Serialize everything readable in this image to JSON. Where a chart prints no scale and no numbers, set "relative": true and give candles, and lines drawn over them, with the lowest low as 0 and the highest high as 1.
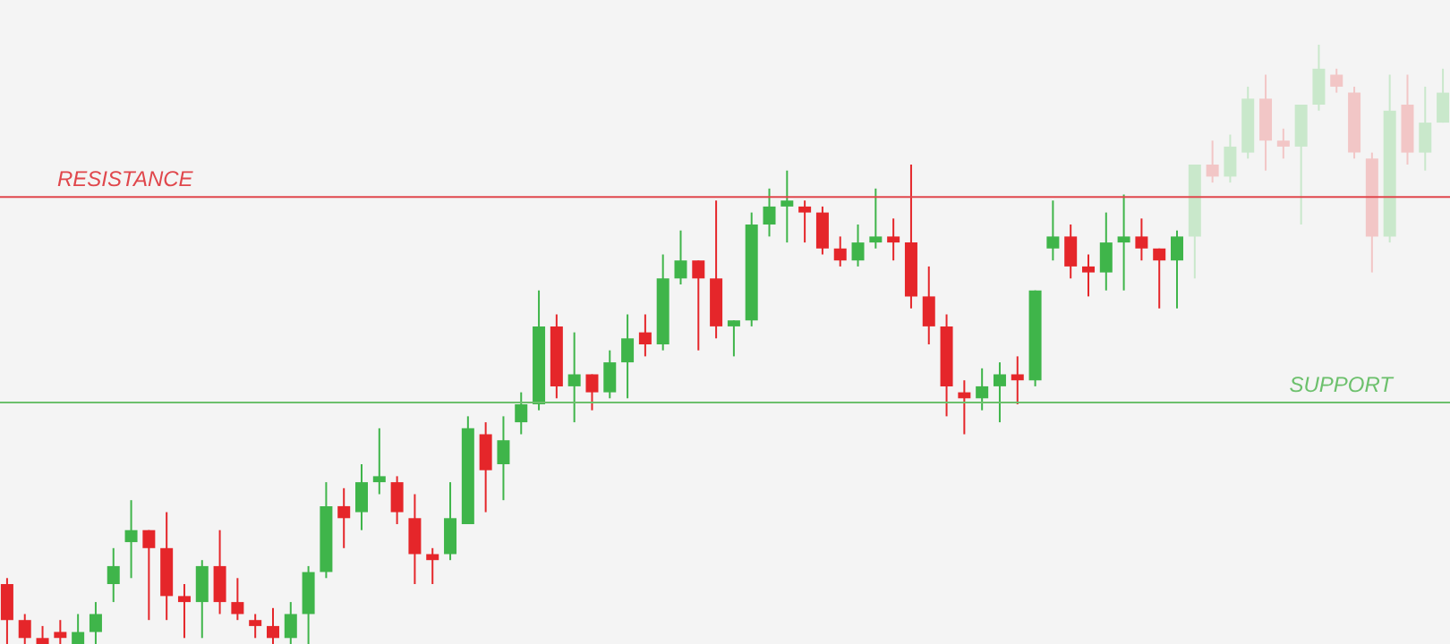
{
  "chart_data": {
    "type": "candlestick",
    "relative": true,
    "categories": [
      null,
      null,
      null,
      null,
      null,
      null,
      null,
      null,
      null,
      null,
      null,
      null,
      null,
      null,
      null,
      null,
      null,
      null,
      null,
      null,
      null,
      null,
      null,
      null,
      null,
      null,
      null,
      null,
      null,
      null,
      null,
      null,
      null,
      null,
      null,
      null,
      null,
      null,
      null,
      null,
      null,
      null,
      null,
      null,
      null,
      null,
      null,
      null,
      null,
      null,
      null,
      null,
      null,
      null,
      null,
      null,
      null,
      null,
      null,
      null,
      null,
      null,
      null,
      null,
      null,
      null,
      null,
      null,
      null,
      null,
      null,
      null,
      null,
      null,
      null,
      null,
      null,
      null,
      null,
      null,
      null,
      null
    ],
    "ohlc": [
      [
        0.1,
        0.11,
        0,
        0.04
      ],
      [
        0.04,
        0.05,
        0,
        0.01
      ],
      [
        0.01,
        0.03,
        0,
        0
      ],
      [
        0.02,
        0.04,
        0,
        0.01
      ],
      [
        0,
        0.05,
        0,
        0.02
      ],
      [
        0.02,
        0.07,
        0,
        0.05
      ],
      [
        0.1,
        0.16,
        0.07,
        0.13
      ],
      [
        0.17,
        0.24,
        0.11,
        0.19
      ],
      [
        0.19,
        0.19,
        0.04,
        0.16
      ],
      [
        0.16,
        0.22,
        0.04,
        0.08
      ],
      [
        0.08,
        0.1,
        0.01,
        0.07
      ],
      [
        0.07,
        0.14,
        0.01,
        0.13
      ],
      [
        0.13,
        0.19,
        0.05,
        0.07
      ],
      [
        0.07,
        0.11,
        0.04,
        0.05
      ],
      [
        0.04,
        0.05,
        0.01,
        0.03
      ],
      [
        0.03,
        0.06,
        0,
        0.01
      ],
      [
        0.01,
        0.07,
        0,
        0.05
      ],
      [
        0.05,
        0.13,
        0,
        0.12
      ],
      [
        0.12,
        0.27,
        0.11,
        0.23
      ],
      [
        0.23,
        0.26,
        0.16,
        0.21
      ],
      [
        0.22,
        0.3,
        0.19,
        0.27
      ],
      [
        0.27,
        0.36,
        0.25,
        0.28
      ],
      [
        0.27,
        0.28,
        0.2,
        0.22
      ],
      [
        0.21,
        0.25,
        0.1,
        0.15
      ],
      [
        0.15,
        0.16,
        0.1,
        0.14
      ],
      [
        0.15,
        0.27,
        0.14,
        0.21
      ],
      [
        0.2,
        0.38,
        0.2,
        0.36
      ],
      [
        0.35,
        0.37,
        0.22,
        0.29
      ],
      [
        0.3,
        0.38,
        0.24,
        0.34
      ],
      [
        0.37,
        0.42,
        0.35,
        0.4
      ],
      [
        0.4,
        0.59,
        0.39,
        0.53
      ],
      [
        0.53,
        0.55,
        0.41,
        0.43
      ],
      [
        0.43,
        0.52,
        0.37,
        0.45
      ],
      [
        0.45,
        0.45,
        0.39,
        0.42
      ],
      [
        0.42,
        0.49,
        0.41,
        0.47
      ],
      [
        0.47,
        0.55,
        0.41,
        0.51
      ],
      [
        0.52,
        0.55,
        0.48,
        0.5
      ],
      [
        0.5,
        0.65,
        0.49,
        0.61
      ],
      [
        0.61,
        0.69,
        0.6,
        0.64
      ],
      [
        0.64,
        0.64,
        0.49,
        0.61
      ],
      [
        0.61,
        0.74,
        0.51,
        0.53
      ],
      [
        0.53,
        0.54,
        0.48,
        0.54
      ],
      [
        0.54,
        0.72,
        0.53,
        0.7
      ],
      [
        0.7,
        0.76,
        0.68,
        0.73
      ],
      [
        0.73,
        0.79,
        0.67,
        0.74
      ],
      [
        0.73,
        0.74,
        0.67,
        0.72
      ],
      [
        0.72,
        0.73,
        0.65,
        0.66
      ],
      [
        0.66,
        0.68,
        0.63,
        0.64
      ],
      [
        0.64,
        0.7,
        0.63,
        0.67
      ],
      [
        0.67,
        0.76,
        0.66,
        0.68
      ],
      [
        0.68,
        0.71,
        0.64,
        0.67
      ],
      [
        0.67,
        0.8,
        0.56,
        0.58
      ],
      [
        0.58,
        0.63,
        0.5,
        0.53
      ],
      [
        0.53,
        0.55,
        0.38,
        0.43
      ],
      [
        0.42,
        0.44,
        0.35,
        0.41
      ],
      [
        0.41,
        0.46,
        0.39,
        0.43
      ],
      [
        0.43,
        0.47,
        0.37,
        0.45
      ],
      [
        0.45,
        0.48,
        0.4,
        0.44
      ],
      [
        0.44,
        0.59,
        0.43,
        0.59
      ],
      [
        0.66,
        0.74,
        0.64,
        0.68
      ],
      [
        0.68,
        0.7,
        0.61,
        0.63
      ],
      [
        0.63,
        0.65,
        0.58,
        0.62
      ],
      [
        0.62,
        0.72,
        0.59,
        0.67
      ],
      [
        0.67,
        0.75,
        0.59,
        0.68
      ],
      [
        0.68,
        0.71,
        0.64,
        0.66
      ],
      [
        0.66,
        0.66,
        0.56,
        0.64
      ],
      [
        0.64,
        0.69,
        0.56,
        0.68
      ],
      [
        0.68,
        0.8,
        0.61,
        0.8
      ],
      [
        0.8,
        0.84,
        0.77,
        0.78
      ],
      [
        0.78,
        0.85,
        0.77,
        0.83
      ],
      [
        0.82,
        0.93,
        0.81,
        0.91
      ],
      [
        0.91,
        0.95,
        0.79,
        0.84
      ],
      [
        0.84,
        0.86,
        0.81,
        0.83
      ],
      [
        0.83,
        0.9,
        0.7,
        0.9
      ],
      [
        0.9,
        1.0,
        0.89,
        0.96
      ],
      [
        0.95,
        0.96,
        0.92,
        0.93
      ],
      [
        0.92,
        0.93,
        0.81,
        0.82
      ],
      [
        0.81,
        0.82,
        0.62,
        0.68
      ],
      [
        0.68,
        0.95,
        0.67,
        0.89
      ],
      [
        0.9,
        0.95,
        0.8,
        0.82
      ],
      [
        0.82,
        0.93,
        0.79,
        0.87
      ],
      [
        0.87,
        0.96,
        0.87,
        0.92
      ]
    ],
    "colors": [
      "#e5262a",
      "#e5262a",
      "#e5262a",
      "#e5262a",
      "#3fb54a",
      "#3fb54a",
      "#3fb54a",
      "#3fb54a",
      "#e5262a",
      "#e5262a",
      "#e5262a",
      "#3fb54a",
      "#e5262a",
      "#e5262a",
      "#e5262a",
      "#e5262a",
      "#3fb54a",
      "#3fb54a",
      "#3fb54a",
      "#e5262a",
      "#3fb54a",
      "#3fb54a",
      "#e5262a",
      "#e5262a",
      "#e5262a",
      "#3fb54a",
      "#3fb54a",
      "#e5262a",
      "#3fb54a",
      "#3fb54a",
      "#3fb54a",
      "#e5262a",
      "#3fb54a",
      "#e5262a",
      "#3fb54a",
      "#3fb54a",
      "#e5262a",
      "#3fb54a",
      "#3fb54a",
      "#e5262a",
      "#e5262a",
      "#3fb54a",
      "#3fb54a",
      "#3fb54a",
      "#3fb54a",
      "#e5262a",
      "#e5262a",
      "#e5262a",
      "#3fb54a",
      "#3fb54a",
      "#e5262a",
      "#e5262a",
      "#e5262a",
      "#e5262a",
      "#e5262a",
      "#3fb54a",
      "#3fb54a",
      "#e5262a",
      "#3fb54a",
      "#3fb54a",
      "#e5262a",
      "#e5262a",
      "#3fb54a",
      "#3fb54a",
      "#e5262a",
      "#e5262a",
      "#3fb54a",
      "#c9e8cb",
      "#f2c6c6",
      "#c9e8cb",
      "#c9e8cb",
      "#f2c6c6",
      "#f2c6c6",
      "#c9e8cb",
      "#c9e8cb",
      "#f2c6c6",
      "#f2c6c6",
      "#f2c6c6",
      "#c9e8cb",
      "#f2c6c6",
      "#c9e8cb",
      "#c9e8cb"
    ],
    "ref_lines": [
      {
        "axis": "y",
        "value": 0.746,
        "label": "RESISTANCE",
        "color": "#e0474c"
      },
      {
        "axis": "y",
        "value": 0.403,
        "label": "SUPPORT",
        "color": "#6cc06c"
      }
    ]
  }
}
